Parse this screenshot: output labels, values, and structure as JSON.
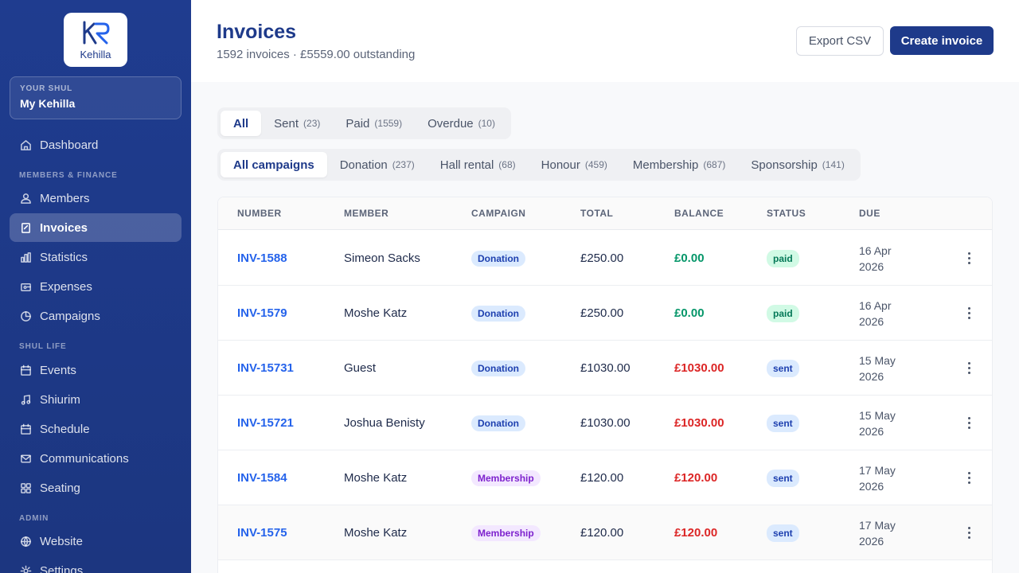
{
  "sidebar": {
    "logo_text": "Kehilla",
    "shul_label": "YOUR SHUL",
    "shul_name": "My Kehilla",
    "sections": [
      "MEMBERS & FINANCE",
      "SHUL LIFE",
      "ADMIN"
    ],
    "items": [
      {
        "label": "Dashboard",
        "icon": "home-icon"
      },
      {
        "label": "Members",
        "icon": "users-icon"
      },
      {
        "label": "Invoices",
        "icon": "invoice-icon",
        "active": true
      },
      {
        "label": "Statistics",
        "icon": "bar-chart-icon"
      },
      {
        "label": "Expenses",
        "icon": "wallet-icon"
      },
      {
        "label": "Campaigns",
        "icon": "pie-chart-icon"
      },
      {
        "label": "Events",
        "icon": "calendar-icon"
      },
      {
        "label": "Shiurim",
        "icon": "music-note-icon"
      },
      {
        "label": "Schedule",
        "icon": "calendar-icon"
      },
      {
        "label": "Communications",
        "icon": "mail-icon"
      },
      {
        "label": "Seating",
        "icon": "grid-icon"
      },
      {
        "label": "Website",
        "icon": "globe-icon"
      },
      {
        "label": "Settings",
        "icon": "gear-icon"
      }
    ]
  },
  "header": {
    "title": "Invoices",
    "subtitle": "1592 invoices · £5559.00 outstanding",
    "export_label": "Export CSV",
    "create_label": "Create invoice"
  },
  "status_tabs": [
    {
      "label": "All",
      "count": ""
    },
    {
      "label": "Sent",
      "count": "(23)"
    },
    {
      "label": "Paid",
      "count": "(1559)"
    },
    {
      "label": "Overdue",
      "count": "(10)"
    }
  ],
  "campaign_tabs": [
    {
      "label": "All campaigns",
      "count": ""
    },
    {
      "label": "Donation",
      "count": "(237)"
    },
    {
      "label": "Hall rental",
      "count": "(68)"
    },
    {
      "label": "Honour",
      "count": "(459)"
    },
    {
      "label": "Membership",
      "count": "(687)"
    },
    {
      "label": "Sponsorship",
      "count": "(141)"
    }
  ],
  "table": {
    "headers": [
      "NUMBER",
      "MEMBER",
      "CAMPAIGN",
      "TOTAL",
      "BALANCE",
      "STATUS",
      "DUE"
    ],
    "rows": [
      {
        "number": "INV-1588",
        "member": "Simeon Sacks",
        "campaign": "Donation",
        "total": "£250.00",
        "balance": "£0.00",
        "status": "paid",
        "due1": "16 Apr",
        "due2": "2026"
      },
      {
        "number": "INV-1579",
        "member": "Moshe Katz",
        "campaign": "Donation",
        "total": "£250.00",
        "balance": "£0.00",
        "status": "paid",
        "due1": "16 Apr",
        "due2": "2026"
      },
      {
        "number": "INV-15731",
        "member": "Guest",
        "campaign": "Donation",
        "total": "£1030.00",
        "balance": "£1030.00",
        "status": "sent",
        "due1": "15 May",
        "due2": "2026"
      },
      {
        "number": "INV-15721",
        "member": "Joshua Benisty",
        "campaign": "Donation",
        "total": "£1030.00",
        "balance": "£1030.00",
        "status": "sent",
        "due1": "15 May",
        "due2": "2026"
      },
      {
        "number": "INV-1584",
        "member": "Moshe Katz",
        "campaign": "Membership",
        "total": "£120.00",
        "balance": "£120.00",
        "status": "sent",
        "due1": "17 May",
        "due2": "2026"
      },
      {
        "number": "INV-1575",
        "member": "Moshe Katz",
        "campaign": "Membership",
        "total": "£120.00",
        "balance": "£120.00",
        "status": "sent",
        "due1": "17 May",
        "due2": "2026"
      }
    ]
  }
}
